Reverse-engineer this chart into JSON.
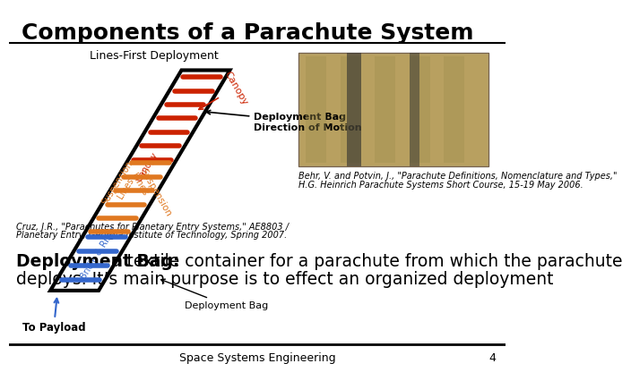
{
  "title": "Components of a Parachute System",
  "title_fontsize": 18,
  "title_bold": true,
  "bg_color": "#ffffff",
  "citation1": "Cruz, J.R., \"Parachutes for Planetary Entry Systems,\" AE8803 /",
  "citation2": "Planetary Entry, Georgia Institute of Technology, Spring 2007.",
  "citation_fontsize": 7,
  "behr_citation": "Behr, V. and Potvin, J., \"Parachute Definitions, Nomenclature and Types,\"",
  "behr_citation2": "H.G. Heinrich Parachute Systems Short Course, 15-19 May 2006.",
  "behr_fontsize": 7,
  "body_bold_text": "Deployment Bag:",
  "body_normal_text": " a textile container for a parachute from which the parachute",
  "body_line2": "deploys. It’s main purpose is to effect an organized deployment",
  "body_fontsize": 13.5,
  "footer_text": "Space Systems Engineering",
  "footer_page": "4",
  "footer_fontsize": 9
}
